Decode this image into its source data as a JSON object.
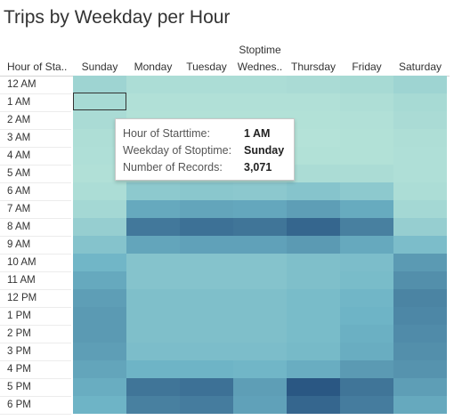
{
  "chart_data": {
    "type": "heatmap",
    "title": "Trips by Weekday per Hour",
    "column_group_title": "Stoptime",
    "row_header_title": "Hour of Sta..",
    "columns": [
      "Sunday",
      "Monday",
      "Tuesday",
      "Wednes..",
      "Thursday",
      "Friday",
      "Saturday"
    ],
    "rows": [
      "12 AM",
      "1 AM",
      "2 AM",
      "3 AM",
      "4 AM",
      "5 AM",
      "6 AM",
      "7 AM",
      "8 AM",
      "9 AM",
      "10 AM",
      "11 AM",
      "12 PM",
      "1 PM",
      "2 PM",
      "3 PM",
      "4 PM",
      "5 PM",
      "6 PM"
    ],
    "values": [
      [
        0.16,
        0.06,
        0.06,
        0.06,
        0.08,
        0.1,
        0.16
      ],
      [
        0.1,
        0.03,
        0.03,
        0.03,
        0.03,
        0.05,
        0.1
      ],
      [
        0.08,
        0.02,
        0.02,
        0.02,
        0.02,
        0.03,
        0.08
      ],
      [
        0.05,
        0.01,
        0.01,
        0.01,
        0.01,
        0.02,
        0.05
      ],
      [
        0.04,
        0.01,
        0.01,
        0.02,
        0.02,
        0.02,
        0.04
      ],
      [
        0.03,
        0.06,
        0.06,
        0.06,
        0.07,
        0.07,
        0.04
      ],
      [
        0.06,
        0.28,
        0.3,
        0.29,
        0.33,
        0.28,
        0.06
      ],
      [
        0.12,
        0.56,
        0.58,
        0.57,
        0.62,
        0.55,
        0.12
      ],
      [
        0.22,
        0.82,
        0.86,
        0.84,
        0.92,
        0.78,
        0.22
      ],
      [
        0.34,
        0.58,
        0.6,
        0.6,
        0.64,
        0.56,
        0.4
      ],
      [
        0.48,
        0.34,
        0.34,
        0.34,
        0.38,
        0.4,
        0.64
      ],
      [
        0.56,
        0.34,
        0.34,
        0.34,
        0.38,
        0.42,
        0.7
      ],
      [
        0.62,
        0.38,
        0.38,
        0.38,
        0.42,
        0.48,
        0.76
      ],
      [
        0.64,
        0.38,
        0.38,
        0.38,
        0.42,
        0.5,
        0.74
      ],
      [
        0.64,
        0.38,
        0.38,
        0.38,
        0.42,
        0.52,
        0.72
      ],
      [
        0.62,
        0.4,
        0.4,
        0.4,
        0.44,
        0.54,
        0.7
      ],
      [
        0.58,
        0.5,
        0.5,
        0.48,
        0.54,
        0.64,
        0.68
      ],
      [
        0.54,
        0.84,
        0.86,
        0.62,
        1.0,
        0.84,
        0.62
      ],
      [
        0.5,
        0.78,
        0.8,
        0.6,
        0.92,
        0.8,
        0.56
      ]
    ],
    "color_scale": [
      "#b5e3d8",
      "#2a5783"
    ],
    "selected_cell": {
      "row": "1 AM",
      "column": "Sunday"
    },
    "tooltip": {
      "rows": [
        {
          "label": "Hour of Starttime:",
          "value": "1 AM"
        },
        {
          "label": "Weekday of Stoptime:",
          "value": "Sunday"
        },
        {
          "label": "Number of Records:",
          "value": "3,071"
        }
      ]
    }
  }
}
